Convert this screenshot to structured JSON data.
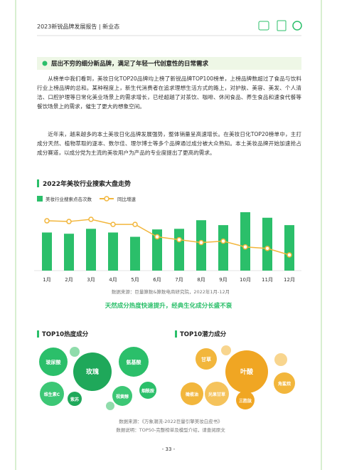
{
  "header": {
    "title": "2023新锐品牌发展报告 | 新业态"
  },
  "section": {
    "heading": "层出不穷的细分新品牌，满足了年轻一代创意性的日常需求",
    "paragraphs": [
      "从榜单中我们看到，美妆日化TOP20品牌均上榜了新锐品牌TOP100榜单，上榜品牌数超过了食品与饮料行业上榜品牌的总和。某种程度上，新生代消费者在追求理想生活方式的路上，对护肤、美容、美发、个人清洁、口腔护理等日常化美业场景上的需求增长，已经超越了对茶饮、咖啡、休闲食品、养生食品和速食代餐等餐饮场景上的需求，催生了更大的想象空间。",
      "近年来，越来越多的本土美妆日化品牌发展强势，整体销量呈高速增长。在美妆日化TOP20榜单中，主打成分天然、植物萃取的逐本、数尔佳、理尔博士等多个品牌通过成分被大众熟知。本土美妆品牌开始加速抢占成分赛道，以成分党为主流的美妆用户为产品的专业度提出了更高的需求。"
    ]
  },
  "chart_data": {
    "type": "bar",
    "title": "2022年美妆行业搜索大盘走势",
    "categories": [
      "1月",
      "2月",
      "3月",
      "4月",
      "5月",
      "6月",
      "7月",
      "8月",
      "9月",
      "10月",
      "11月",
      "12月"
    ],
    "series": [
      {
        "name": "美妆行业搜索点击次数",
        "color": "#2bbf6a",
        "values": [
          62,
          60,
          68,
          62,
          55,
          67,
          68,
          82,
          74,
          95,
          86,
          74
        ]
      },
      {
        "name": "同比增速",
        "color": "#f2b63c",
        "type": "line",
        "values": [
          47,
          46,
          49,
          42,
          42,
          25,
          21,
          17,
          19,
          11,
          9,
          0
        ]
      }
    ],
    "source": "数据来源：巨量算数&算数电商研究院，2022年1月-12月"
  },
  "subheading": "天然成分热度快速提升，经典生化成分长盛不衰",
  "bubbles": [
    {
      "title": "TOP10热度成分",
      "labels": [
        "玻尿酸",
        "玫瑰",
        "氨基酸",
        "维生素C",
        "紫苏",
        "视黄醇",
        "烟酰胺"
      ]
    },
    {
      "title": "TOP10潜力成分",
      "labels": [
        "甘草",
        "叶酸",
        "橄榄油",
        "光果甘草",
        "三胜肽",
        "角鲨烷"
      ]
    }
  ],
  "footer": {
    "source": "数据来源：《万象潮流-2022巨量引擎美妆白皮书》",
    "note": "数据说明：TOP50-完整榜单及模型介绍，请查阅原文",
    "page": "- 33 -"
  }
}
